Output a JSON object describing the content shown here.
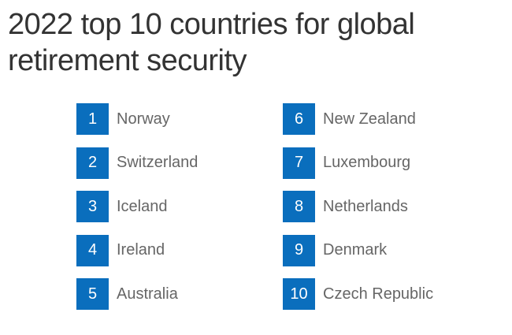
{
  "title": "2022 top 10 countries for global retirement security",
  "accent_color": "#0a6ebd",
  "rankings": [
    {
      "rank": "1",
      "country": "Norway"
    },
    {
      "rank": "2",
      "country": "Switzerland"
    },
    {
      "rank": "3",
      "country": "Iceland"
    },
    {
      "rank": "4",
      "country": "Ireland"
    },
    {
      "rank": "5",
      "country": "Australia"
    },
    {
      "rank": "6",
      "country": "New Zealand"
    },
    {
      "rank": "7",
      "country": "Luxembourg"
    },
    {
      "rank": "8",
      "country": "Netherlands"
    },
    {
      "rank": "9",
      "country": "Denmark"
    },
    {
      "rank": "10",
      "country": "Czech Republic"
    }
  ]
}
